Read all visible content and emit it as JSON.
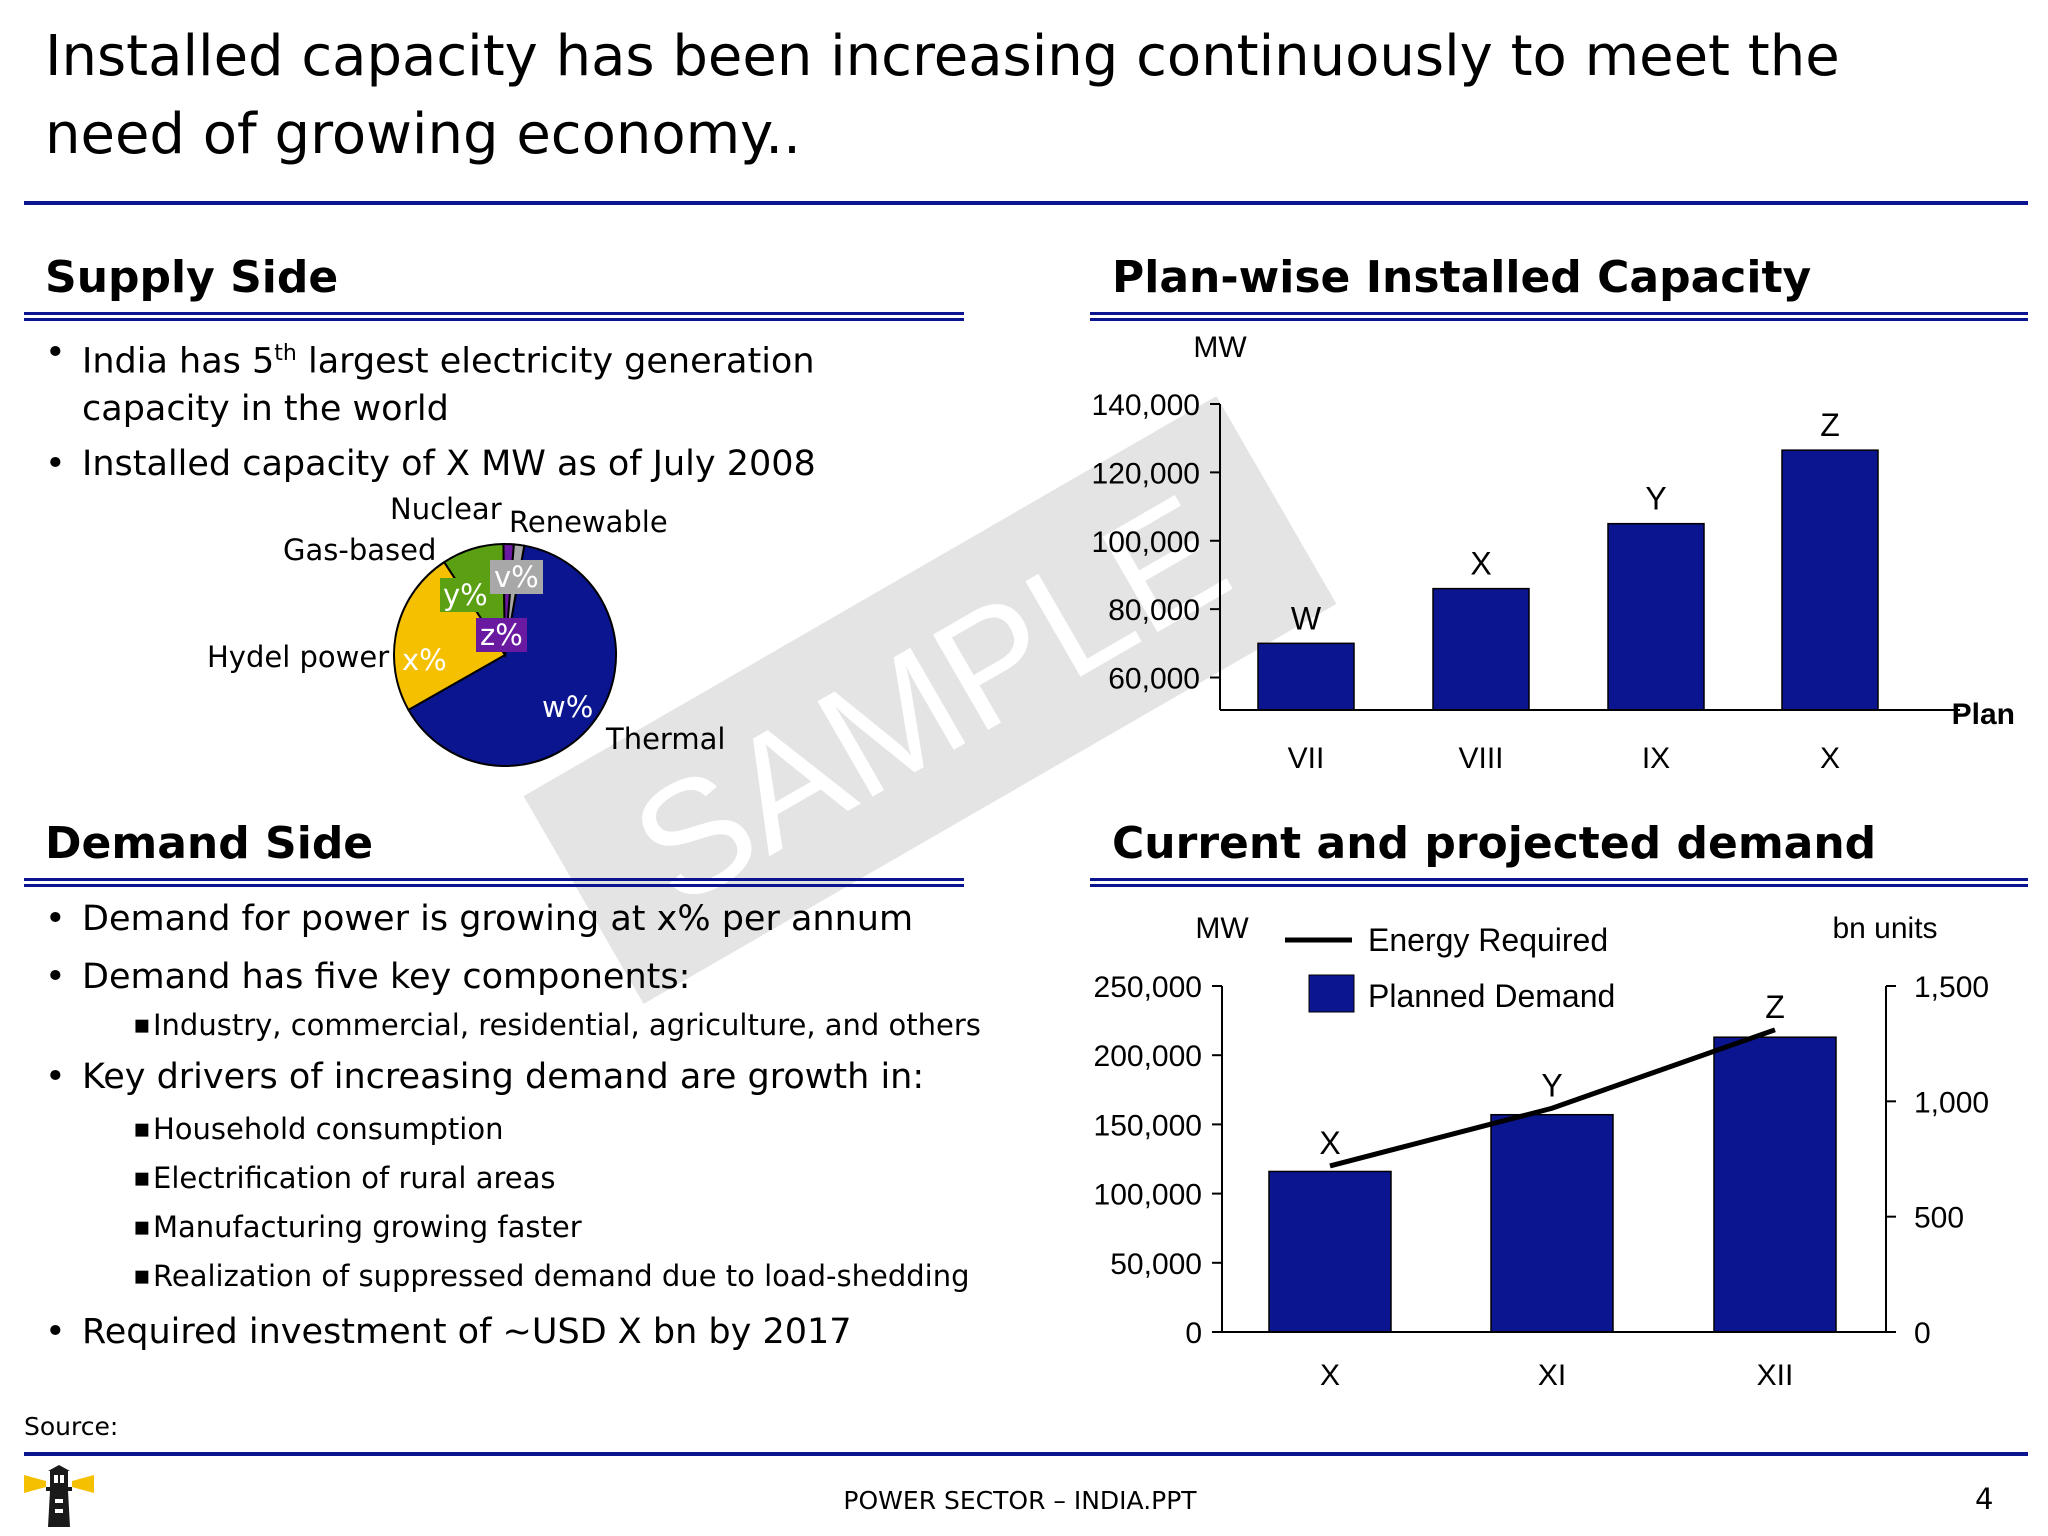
{
  "title": "Installed capacity has been increasing continuously to meet the need of growing economy..",
  "supply": {
    "heading": "Supply Side",
    "bullet1_pre": "India has 5",
    "bullet1_sup": "th",
    "bullet1_post": " largest electricity generation capacity in the world",
    "bullet2": "Installed capacity of X MW as of July 2008"
  },
  "demand": {
    "heading": "Demand Side",
    "bullet1": "Demand for power is growing at x% per annum",
    "bullet2": "Demand has five key components:",
    "sub1": "Industry, commercial, residential, agriculture, and others",
    "bullet3": "Key drivers of increasing demand are growth in:",
    "sub2": "Household consumption",
    "sub3": "Electrification of rural areas",
    "sub4": "Manufacturing growing faster",
    "sub5": "Realization of suppressed demand due to load-shedding",
    "bullet4": "Required investment of ~USD X bn by 2017"
  },
  "watermark": "SAMPLE",
  "source_label": "Source:",
  "footer_text": "POWER SECTOR – INDIA.PPT",
  "page_number": "4",
  "colors": {
    "navy": "#0b1590",
    "yellow": "#f5c000",
    "green": "#5aa012",
    "purple": "#6a1aa0",
    "gray": "#a8a8a8"
  },
  "chart_data": [
    {
      "type": "pie",
      "slices": [
        {
          "name": "Thermal",
          "value_label": "w%",
          "value": 64,
          "color": "#0b1590"
        },
        {
          "name": "Hydel power",
          "value_label": "x%",
          "value": 24,
          "color": "#f5c000"
        },
        {
          "name": "Gas-based",
          "value_label": "y%",
          "value": 9,
          "color": "#5aa012"
        },
        {
          "name": "Nuclear",
          "value_label": "z%",
          "value": 1.5,
          "color": "#6a1aa0"
        },
        {
          "name": "Renewable",
          "value_label": "v%",
          "value": 1.5,
          "color": "#a8a8a8"
        }
      ]
    },
    {
      "type": "bar",
      "title": "Plan-wise Installed Capacity",
      "ylabel": "MW",
      "xlabel": "Plan",
      "categories": [
        "VII",
        "VIII",
        "IX",
        "X"
      ],
      "values": [
        70000,
        86000,
        105000,
        126500
      ],
      "data_labels": [
        "W",
        "X",
        "Y",
        "Z"
      ],
      "yticks": [
        "60,000",
        "80,000",
        "100,000",
        "120,000",
        "140,000"
      ],
      "ylim": [
        50500,
        140000
      ],
      "color": "#0b1590"
    },
    {
      "type": "bar",
      "title": "Current and projected demand",
      "ylabel": "MW",
      "ylabel_right": "bn units",
      "categories": [
        "X",
        "XI",
        "XII"
      ],
      "series": [
        {
          "name": "Planned Demand",
          "type": "bar",
          "axis": "left",
          "values": [
            116000,
            157000,
            213000
          ],
          "color": "#0b1590"
        },
        {
          "name": "Energy Required",
          "type": "line",
          "axis": "right",
          "values": [
            720,
            970,
            1310
          ],
          "color": "#000000"
        }
      ],
      "data_labels": [
        "X",
        "Y",
        "Z"
      ],
      "yticks": [
        "0",
        "50,000",
        "100,000",
        "150,000",
        "200,000",
        "250,000"
      ],
      "yticks_right": [
        "0",
        "500",
        "1,000",
        "1,500"
      ],
      "ylim": [
        0,
        250000
      ],
      "ylim_right": [
        0,
        1500
      ],
      "legend": "top"
    }
  ]
}
